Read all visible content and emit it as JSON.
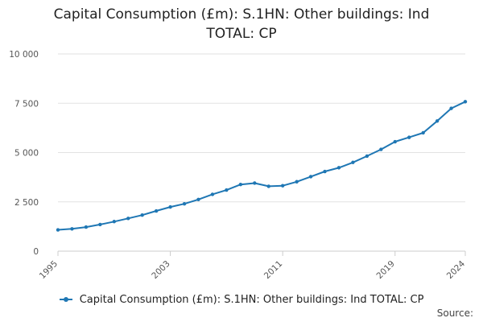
{
  "chart_data": {
    "type": "line",
    "title": "Capital Consumption (£m): S.1HN: Other buildings: Ind TOTAL: CP",
    "title_lines": [
      "Capital Consumption (£m): S.1HN: Other buildings: Ind",
      "TOTAL: CP"
    ],
    "xlabel": "",
    "ylabel": "",
    "xlim": [
      1995,
      2024
    ],
    "ylim": [
      0,
      10000
    ],
    "x_ticks": [
      1995,
      2003,
      2011,
      2019,
      2024
    ],
    "y_ticks": [
      0,
      2500,
      5000,
      7500,
      10000
    ],
    "y_tick_labels": [
      "0",
      "2 500",
      "5 000",
      "7 500",
      "10 000"
    ],
    "grid": true,
    "legend_position": "bottom",
    "color": "#1f77b4",
    "series": [
      {
        "name": "Capital Consumption (£m): S.1HN: Other buildings: Ind TOTAL: CP",
        "x": [
          1995,
          1996,
          1997,
          1998,
          1999,
          2000,
          2001,
          2002,
          2003,
          2004,
          2005,
          2006,
          2007,
          2008,
          2009,
          2010,
          2011,
          2012,
          2013,
          2014,
          2015,
          2016,
          2017,
          2018,
          2019,
          2020,
          2021,
          2022,
          2023,
          2024
        ],
        "values": [
          1080,
          1130,
          1220,
          1350,
          1500,
          1660,
          1830,
          2040,
          2240,
          2400,
          2620,
          2880,
          3100,
          3380,
          3450,
          3290,
          3320,
          3520,
          3780,
          4040,
          4230,
          4500,
          4820,
          5160,
          5550,
          5770,
          6000,
          6600,
          7240,
          7580
        ]
      }
    ]
  },
  "source_label": "Source:"
}
